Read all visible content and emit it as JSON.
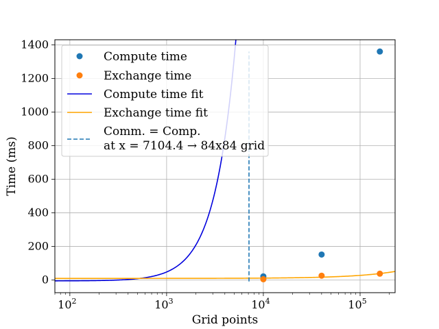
{
  "chart_data": {
    "type": "scatter",
    "xlabel": "Grid points",
    "ylabel": "Time (ms)",
    "x_scale": "log",
    "xlim": [
      70,
      230000
    ],
    "ylim": [
      -75,
      1430
    ],
    "x_ticks": [
      {
        "value": 100,
        "base": "10",
        "exp": "2"
      },
      {
        "value": 1000,
        "base": "10",
        "exp": "3"
      },
      {
        "value": 10000,
        "base": "10",
        "exp": "4"
      },
      {
        "value": 100000,
        "base": "10",
        "exp": "5"
      }
    ],
    "y_ticks": [
      {
        "value": 0,
        "label": "0"
      },
      {
        "value": 200,
        "label": "200"
      },
      {
        "value": 400,
        "label": "400"
      },
      {
        "value": 600,
        "label": "600"
      },
      {
        "value": 800,
        "label": "800"
      },
      {
        "value": 1000,
        "label": "1000"
      },
      {
        "value": 1200,
        "label": "1200"
      },
      {
        "value": 1400,
        "label": "1400"
      }
    ],
    "grid": true,
    "legend_placement": "top-left",
    "series": [
      {
        "name": "Compute time",
        "kind": "points",
        "color": "#1f77b4",
        "x": [
          10000,
          40000,
          160000
        ],
        "y": [
          22,
          152,
          1360
        ]
      },
      {
        "name": "Exchange time",
        "kind": "points",
        "color": "#ff7f0e",
        "x": [
          10000,
          40000,
          160000
        ],
        "y": [
          5,
          26,
          38
        ]
      },
      {
        "name": "Compute time fit",
        "kind": "line",
        "color": "#0000dd",
        "fit": {
          "a": 5.31e-05,
          "b": 0,
          "c": -5
        }
      },
      {
        "name": "Exchange time fit",
        "kind": "line",
        "color": "#ffa500",
        "fit": {
          "a": 0,
          "b": 0.00018,
          "c": 10
        }
      }
    ],
    "vline": {
      "x": 7104.4,
      "y_top": 1360,
      "color": "#1f77b4",
      "label_line1": "Comm. = Comp.",
      "label_line2": "at x = 7104.4 → 84x84 grid"
    }
  }
}
